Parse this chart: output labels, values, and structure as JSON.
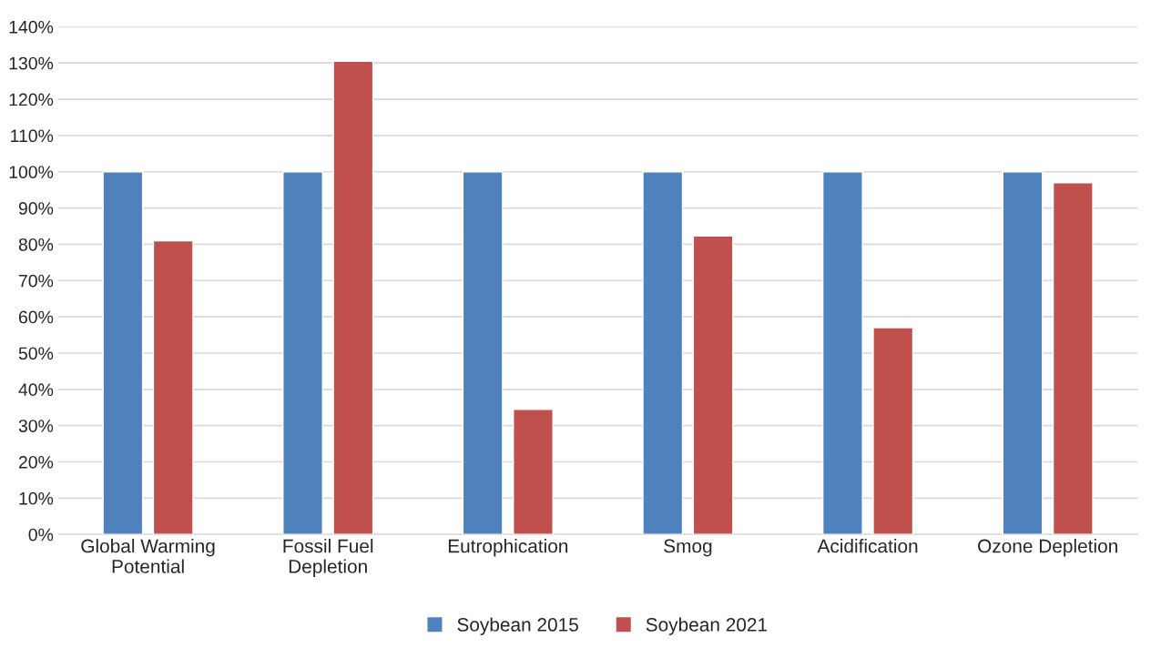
{
  "chart_data": {
    "type": "bar",
    "categories": [
      "Global Warming\nPotential",
      "Fossil Fuel\nDepletion",
      "Eutrophication",
      "Smog",
      "Acidification",
      "Ozone Depletion"
    ],
    "series": [
      {
        "name": "Soybean 2015",
        "color": "#4f81bd",
        "values": [
          100,
          100,
          100,
          100,
          100,
          100
        ]
      },
      {
        "name": "Soybean 2021",
        "color": "#c0504d",
        "values": [
          81,
          130.5,
          34.5,
          82.3,
          57,
          97
        ]
      }
    ],
    "ylim": [
      0,
      140
    ],
    "yticks": [
      {
        "value": 0,
        "label": "0%"
      },
      {
        "value": 10,
        "label": "10%"
      },
      {
        "value": 20,
        "label": "20%"
      },
      {
        "value": 30,
        "label": "30%"
      },
      {
        "value": 40,
        "label": "40%"
      },
      {
        "value": 50,
        "label": "50%"
      },
      {
        "value": 60,
        "label": "60%"
      },
      {
        "value": 70,
        "label": "70%"
      },
      {
        "value": 80,
        "label": "80%"
      },
      {
        "value": 90,
        "label": "90%"
      },
      {
        "value": 100,
        "label": "100%"
      },
      {
        "value": 110,
        "label": "110%"
      },
      {
        "value": 120,
        "label": "120%"
      },
      {
        "value": 130,
        "label": "130%"
      },
      {
        "value": 140,
        "label": "140%"
      }
    ],
    "grid": "y",
    "legend": "bottom"
  }
}
